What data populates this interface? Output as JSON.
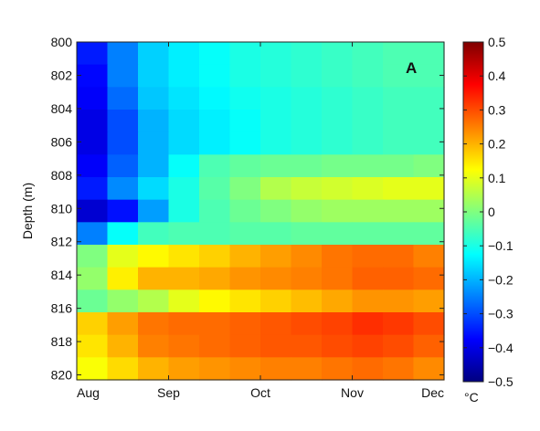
{
  "chart_data": {
    "type": "heatmap",
    "panel_label": "A",
    "ylabel": "Depth (m)",
    "y_ticks": [
      "800",
      "802",
      "804",
      "806",
      "808",
      "810",
      "812",
      "814",
      "816",
      "818",
      "820"
    ],
    "x_ticks": [
      "Aug",
      "Sep",
      "Oct",
      "Nov",
      "Dec"
    ],
    "ylim": [
      800,
      820.3
    ],
    "y_reversed": true,
    "colorbar": {
      "label": "°C",
      "ticks": [
        "0.5",
        "0.4",
        "0.3",
        "0.2",
        "0.1",
        "0",
        "−0.1",
        "−0.2",
        "−0.3",
        "−0.4",
        "−0.5"
      ],
      "range": [
        -0.5,
        0.5
      ],
      "colormap": "jet"
    },
    "time_columns": [
      "Aug",
      "Aug",
      "Aug",
      "Sep",
      "Sep",
      "Oct",
      "Oct",
      "Oct",
      "Nov",
      "Nov",
      "Nov",
      "Dec"
    ],
    "depth_rows": [
      800.7,
      802.1,
      803.5,
      804.9,
      806.3,
      807.7,
      809.1,
      810.5,
      811.9,
      813.3,
      814.7,
      816.1,
      817.5,
      818.9,
      820.3
    ],
    "values": [
      [
        -0.35,
        -0.25,
        -0.17,
        -0.14,
        -0.12,
        -0.1,
        -0.09,
        -0.08,
        -0.07,
        -0.06,
        -0.05,
        -0.05
      ],
      [
        -0.37,
        -0.25,
        -0.17,
        -0.14,
        -0.12,
        -0.1,
        -0.09,
        -0.08,
        -0.07,
        -0.06,
        -0.05,
        -0.05
      ],
      [
        -0.38,
        -0.27,
        -0.18,
        -0.15,
        -0.13,
        -0.11,
        -0.1,
        -0.09,
        -0.08,
        -0.07,
        -0.06,
        -0.06
      ],
      [
        -0.4,
        -0.3,
        -0.2,
        -0.16,
        -0.14,
        -0.12,
        -0.1,
        -0.09,
        -0.08,
        -0.07,
        -0.06,
        -0.06
      ],
      [
        -0.4,
        -0.3,
        -0.2,
        -0.16,
        -0.14,
        -0.12,
        -0.1,
        -0.09,
        -0.08,
        -0.07,
        -0.06,
        -0.06
      ],
      [
        -0.38,
        -0.28,
        -0.2,
        -0.12,
        -0.05,
        -0.03,
        -0.02,
        -0.02,
        -0.01,
        -0.01,
        -0.01,
        0.0
      ],
      [
        -0.35,
        -0.24,
        -0.16,
        -0.1,
        -0.04,
        0.0,
        0.05,
        0.07,
        0.08,
        0.09,
        0.1,
        0.1
      ],
      [
        -0.42,
        -0.36,
        -0.22,
        -0.1,
        -0.05,
        -0.02,
        0.0,
        0.02,
        0.03,
        0.03,
        0.03,
        0.03
      ],
      [
        -0.25,
        -0.12,
        -0.06,
        -0.05,
        -0.05,
        -0.04,
        -0.04,
        -0.03,
        -0.03,
        -0.03,
        -0.03,
        -0.03
      ],
      [
        0.0,
        0.1,
        0.13,
        0.15,
        0.17,
        0.2,
        0.22,
        0.24,
        0.26,
        0.27,
        0.27,
        0.25
      ],
      [
        0.02,
        0.14,
        0.2,
        0.2,
        0.21,
        0.23,
        0.24,
        0.25,
        0.26,
        0.28,
        0.28,
        0.27
      ],
      [
        -0.02,
        0.02,
        0.05,
        0.1,
        0.13,
        0.15,
        0.17,
        0.19,
        0.21,
        0.23,
        0.23,
        0.22
      ],
      [
        0.17,
        0.22,
        0.26,
        0.27,
        0.27,
        0.28,
        0.29,
        0.3,
        0.31,
        0.33,
        0.32,
        0.3
      ],
      [
        0.15,
        0.2,
        0.25,
        0.26,
        0.27,
        0.28,
        0.29,
        0.29,
        0.3,
        0.31,
        0.3,
        0.28
      ],
      [
        0.12,
        0.16,
        0.2,
        0.22,
        0.23,
        0.24,
        0.25,
        0.25,
        0.26,
        0.27,
        0.26,
        0.24
      ]
    ]
  }
}
